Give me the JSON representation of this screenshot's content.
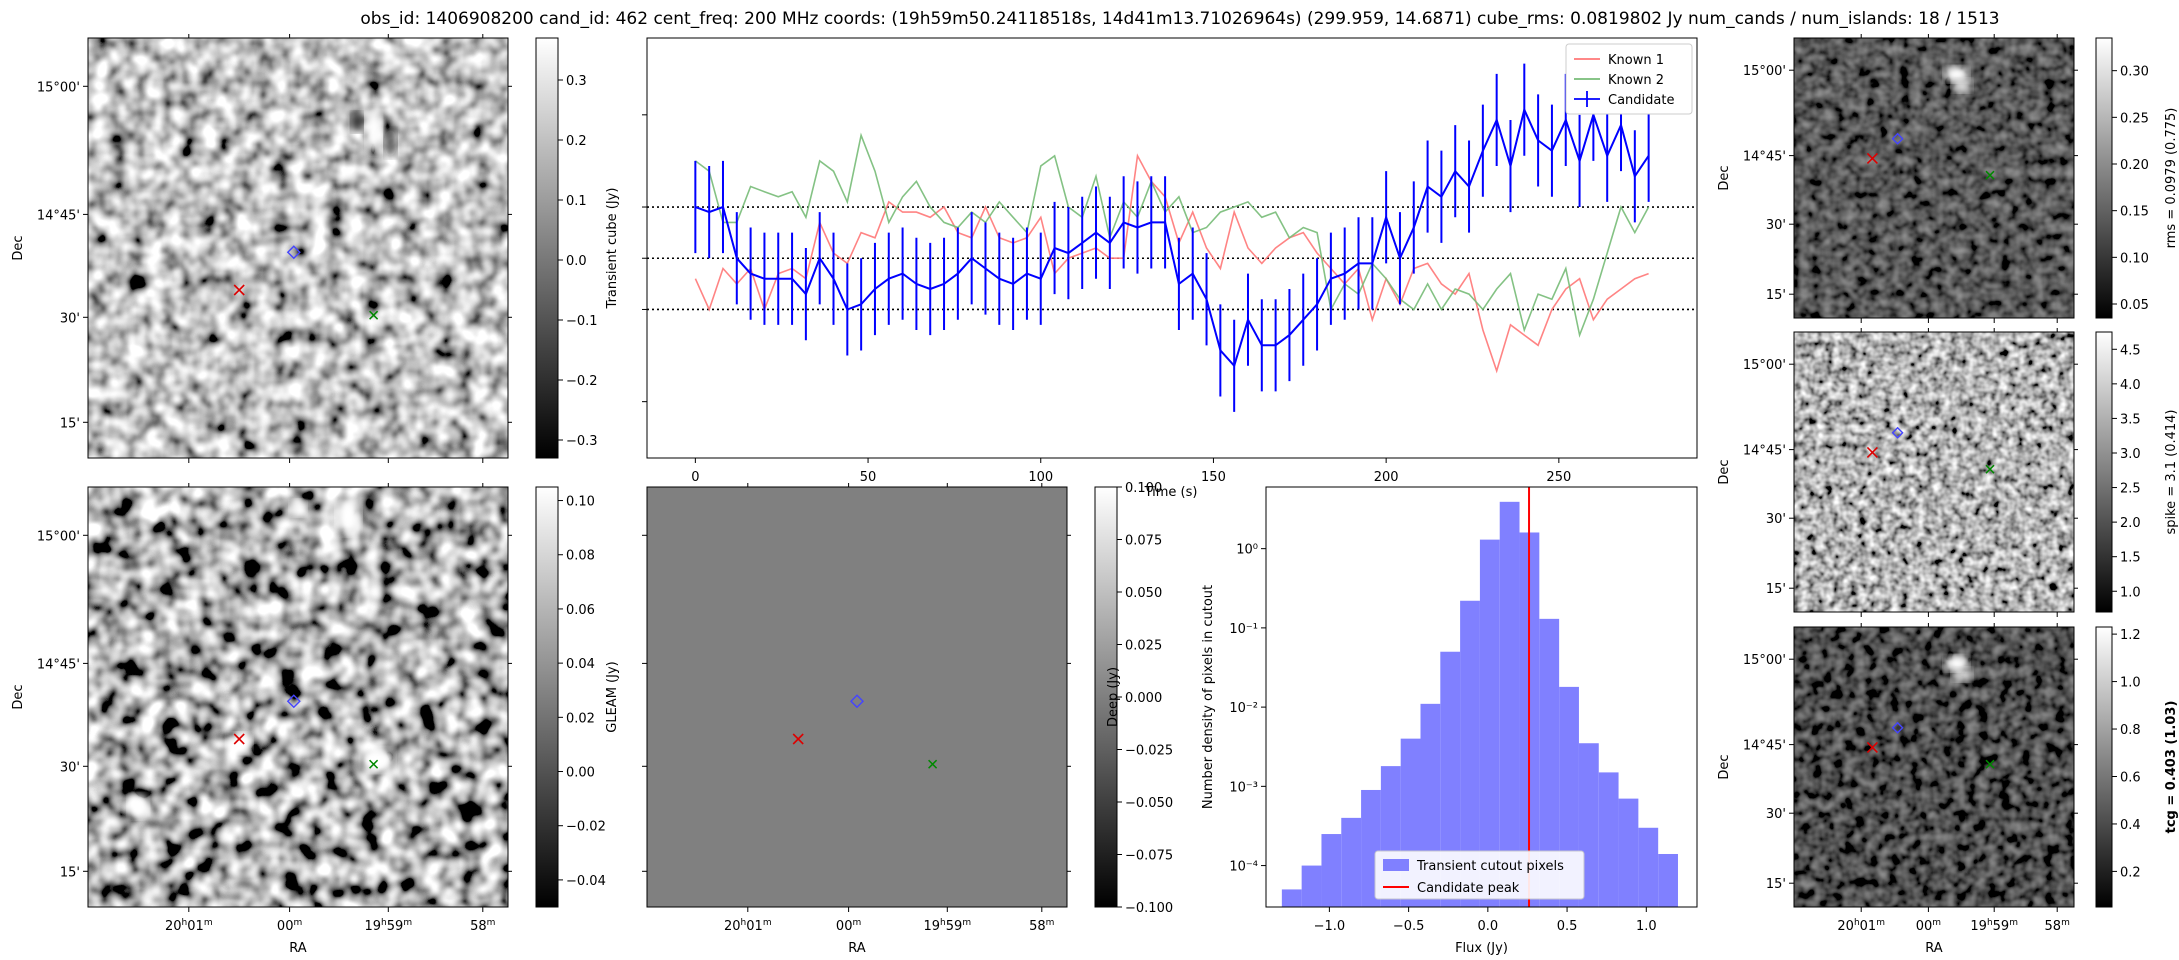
{
  "figure_title": "obs_id: 1406908200 cand_id: 462 cent_freq: 200 MHz coords: (19h59m50.24118518s, 14d41m13.71026964s) (299.959, 14.6871) cube_rms: 0.0819802 Jy num_cands / num_islands: 18 / 1513",
  "colors": {
    "candidate": "#0000ff",
    "known1": "#ff7777",
    "known2": "#77bb77",
    "red_marker": "#dd0000",
    "green_marker": "#008800",
    "blue_marker": "#4444ff",
    "hist": "#8080ff",
    "peak_line": "#ff0000"
  },
  "icons": {
    "red_marker": "red-x-marker-icon",
    "green_marker": "green-x-marker-icon",
    "blue_marker": "blue-diamond-marker-icon"
  },
  "sky_axes": {
    "dec_ticks": [
      "15°00'",
      "14°45'",
      "30'",
      "15'"
    ],
    "ra_ticks": [
      "20h01m",
      "00m",
      "19h59m",
      "58m"
    ],
    "ra_hours_prefix": [
      "20",
      "",
      "19",
      ""
    ],
    "ra_minutes": [
      "01",
      "00",
      "59",
      "58"
    ],
    "xlabel": "RA",
    "ylabel": "Dec"
  },
  "panels": {
    "transient": {
      "colorbar_label": "Transient cube (Jy)",
      "colorbar_ticks": [
        "0.3",
        "0.2",
        "0.1",
        "0.0",
        "−0.1",
        "−0.2",
        "−0.3"
      ],
      "colorbar_range": [
        -0.33,
        0.37
      ]
    },
    "gleam": {
      "colorbar_label": "GLEAM (Jy)",
      "colorbar_ticks": [
        "0.10",
        "0.08",
        "0.06",
        "0.04",
        "0.02",
        "0.00",
        "−0.02",
        "−0.04"
      ],
      "colorbar_range": [
        -0.05,
        0.105
      ]
    },
    "deep": {
      "colorbar_label": "Deep (Jy)",
      "colorbar_ticks": [
        "0.100",
        "0.075",
        "0.050",
        "0.025",
        "0.000",
        "−0.025",
        "−0.050",
        "−0.075",
        "−0.100"
      ],
      "colorbar_range": [
        -0.1,
        0.1
      ]
    },
    "rms": {
      "colorbar_label": "rms = 0.0979 (0.775)",
      "colorbar_ticks": [
        "0.30",
        "0.25",
        "0.20",
        "0.15",
        "0.10",
        "0.05"
      ],
      "colorbar_range": [
        0.035,
        0.335
      ]
    },
    "spike": {
      "colorbar_label": "spike = 3.1 (0.414)",
      "colorbar_ticks": [
        "4.5",
        "4.0",
        "3.5",
        "3.0",
        "2.5",
        "2.0",
        "1.5",
        "1.0"
      ],
      "colorbar_range": [
        0.7,
        4.75
      ]
    },
    "tcg": {
      "colorbar_label": "tcg = 0.403 (1.03)",
      "colorbar_ticks": [
        "1.2",
        "1.0",
        "0.8",
        "0.6",
        "0.4",
        "0.2"
      ],
      "colorbar_range": [
        0.05,
        1.23
      ]
    }
  },
  "chart_data": [
    {
      "type": "line",
      "title": "",
      "xlabel": "Time (s)",
      "ylabel": "",
      "xlim": [
        -14,
        290
      ],
      "ylim": [
        -0.39,
        0.43
      ],
      "xticks": [
        0,
        50,
        100,
        150,
        200,
        250
      ],
      "hlines": [
        0.1,
        0.0,
        -0.1
      ],
      "legend_location": "top-right",
      "x": [
        0,
        4,
        8,
        12,
        16,
        20,
        24,
        28,
        32,
        36,
        40,
        44,
        48,
        52,
        56,
        60,
        64,
        68,
        72,
        76,
        80,
        84,
        88,
        92,
        96,
        100,
        104,
        108,
        112,
        116,
        120,
        124,
        128,
        132,
        136,
        140,
        144,
        148,
        152,
        156,
        160,
        164,
        168,
        172,
        176,
        180,
        184,
        188,
        192,
        196,
        200,
        204,
        208,
        212,
        216,
        220,
        224,
        228,
        232,
        236,
        240,
        244,
        248,
        252,
        256,
        260,
        264,
        268,
        272,
        276
      ],
      "series": [
        {
          "name": "Candidate",
          "values": [
            0.1,
            0.09,
            0.1,
            0.0,
            -0.03,
            -0.04,
            -0.04,
            -0.04,
            -0.07,
            0.0,
            -0.04,
            -0.1,
            -0.09,
            -0.06,
            -0.04,
            -0.03,
            -0.05,
            -0.06,
            -0.05,
            -0.03,
            0.0,
            -0.02,
            -0.04,
            -0.05,
            -0.03,
            -0.04,
            0.02,
            0.01,
            0.03,
            0.05,
            0.03,
            0.07,
            0.06,
            0.07,
            0.07,
            -0.05,
            -0.03,
            -0.08,
            -0.18,
            -0.21,
            -0.12,
            -0.17,
            -0.17,
            -0.15,
            -0.12,
            -0.09,
            -0.04,
            -0.03,
            -0.01,
            -0.01,
            0.08,
            0.0,
            0.06,
            0.14,
            0.12,
            0.17,
            0.14,
            0.21,
            0.27,
            0.18,
            0.29,
            0.23,
            0.21,
            0.27,
            0.19,
            0.28,
            0.2,
            0.26,
            0.16,
            0.2
          ],
          "errors": [
            0.09,
            0.09,
            0.09,
            0.09,
            0.09,
            0.09,
            0.09,
            0.09,
            0.09,
            0.09,
            0.09,
            0.09,
            0.09,
            0.09,
            0.09,
            0.09,
            0.09,
            0.09,
            0.09,
            0.09,
            0.09,
            0.09,
            0.09,
            0.09,
            0.09,
            0.09,
            0.09,
            0.09,
            0.09,
            0.09,
            0.09,
            0.09,
            0.09,
            0.09,
            0.09,
            0.09,
            0.09,
            0.09,
            0.09,
            0.09,
            0.09,
            0.09,
            0.09,
            0.09,
            0.09,
            0.09,
            0.09,
            0.09,
            0.09,
            0.09,
            0.09,
            0.09,
            0.09,
            0.09,
            0.09,
            0.09,
            0.09,
            0.09,
            0.09,
            0.09,
            0.09,
            0.09,
            0.09,
            0.09,
            0.09,
            0.09,
            0.09,
            0.09,
            0.09,
            0.09
          ]
        },
        {
          "name": "Known 1",
          "values": [
            -0.04,
            -0.1,
            -0.02,
            -0.05,
            -0.02,
            -0.1,
            -0.03,
            -0.02,
            -0.04,
            0.07,
            0.01,
            -0.01,
            0.05,
            0.04,
            0.11,
            0.09,
            0.09,
            0.08,
            0.1,
            0.05,
            0.04,
            0.1,
            0.04,
            0.03,
            0.04,
            0.08,
            -0.03,
            0.0,
            0.01,
            0.02,
            0.0,
            0.0,
            0.2,
            0.15,
            0.12,
            0.03,
            0.09,
            0.02,
            -0.02,
            0.09,
            0.02,
            -0.01,
            0.02,
            0.04,
            0.05,
            0.01,
            -0.02,
            -0.05,
            -0.02,
            -0.12,
            -0.04,
            -0.09,
            -0.02,
            -0.01,
            -0.05,
            -0.07,
            -0.03,
            -0.14,
            -0.22,
            -0.13,
            -0.15,
            -0.17,
            -0.1,
            -0.06,
            -0.04,
            -0.12,
            -0.08,
            -0.06,
            -0.04,
            -0.03
          ]
        },
        {
          "name": "Known 2",
          "values": [
            0.19,
            0.17,
            0.07,
            0.07,
            0.14,
            0.13,
            0.12,
            0.13,
            0.08,
            0.19,
            0.17,
            0.11,
            0.24,
            0.17,
            0.07,
            0.12,
            0.15,
            0.1,
            0.07,
            0.06,
            0.09,
            0.07,
            0.11,
            0.08,
            0.05,
            0.18,
            0.2,
            0.1,
            0.08,
            0.16,
            0.04,
            0.11,
            0.08,
            0.15,
            0.09,
            0.12,
            0.05,
            0.06,
            0.09,
            0.1,
            0.11,
            0.08,
            0.09,
            0.04,
            0.06,
            0.05,
            -0.1,
            -0.05,
            -0.07,
            -0.01,
            -0.04,
            -0.08,
            -0.1,
            -0.05,
            -0.1,
            -0.06,
            -0.07,
            -0.1,
            -0.06,
            -0.03,
            -0.14,
            -0.07,
            -0.08,
            -0.02,
            -0.15,
            -0.08,
            0.01,
            0.1,
            0.05,
            0.1
          ]
        }
      ],
      "legend_entries": [
        "Known 1",
        "Known 2",
        "Candidate"
      ]
    },
    {
      "type": "bar",
      "title": "",
      "xlabel": "Flux (Jy)",
      "ylabel": "Number density of pixels in cutout",
      "yscale": "log",
      "xlim": [
        -1.4,
        1.32
      ],
      "ylim": [
        3e-05,
        6
      ],
      "xticks": [
        -1.0,
        -0.5,
        0.0,
        0.5,
        1.0
      ],
      "xtick_labels": [
        "−1.0",
        "−0.5",
        "0.0",
        "0.5",
        "1.0"
      ],
      "ytick_labels": [
        "10⁰",
        "10⁻¹",
        "10⁻²",
        "10⁻³",
        "10⁻⁴"
      ],
      "ytick_values": [
        1,
        0.1,
        0.01,
        0.001,
        0.0001
      ],
      "bin_edges": [
        -1.3,
        -1.175,
        -1.05,
        -0.925,
        -0.8,
        -0.675,
        -0.55,
        -0.425,
        -0.3,
        -0.175,
        -0.05,
        0.075,
        0.2,
        0.325,
        0.45,
        0.575,
        0.7,
        0.825,
        0.95,
        1.075,
        1.2
      ],
      "values": [
        5e-05,
        0.0001,
        0.00025,
        0.0004,
        0.0009,
        0.0018,
        0.004,
        0.011,
        0.05,
        0.22,
        1.3,
        3.9,
        1.6,
        0.13,
        0.018,
        0.0035,
        0.0015,
        0.0007,
        0.0003,
        0.00014
      ],
      "candidate_peak": 0.26,
      "legend_location": "bottom-center",
      "legend_entries": [
        "Transient cutout pixels",
        "Candidate peak"
      ]
    }
  ]
}
